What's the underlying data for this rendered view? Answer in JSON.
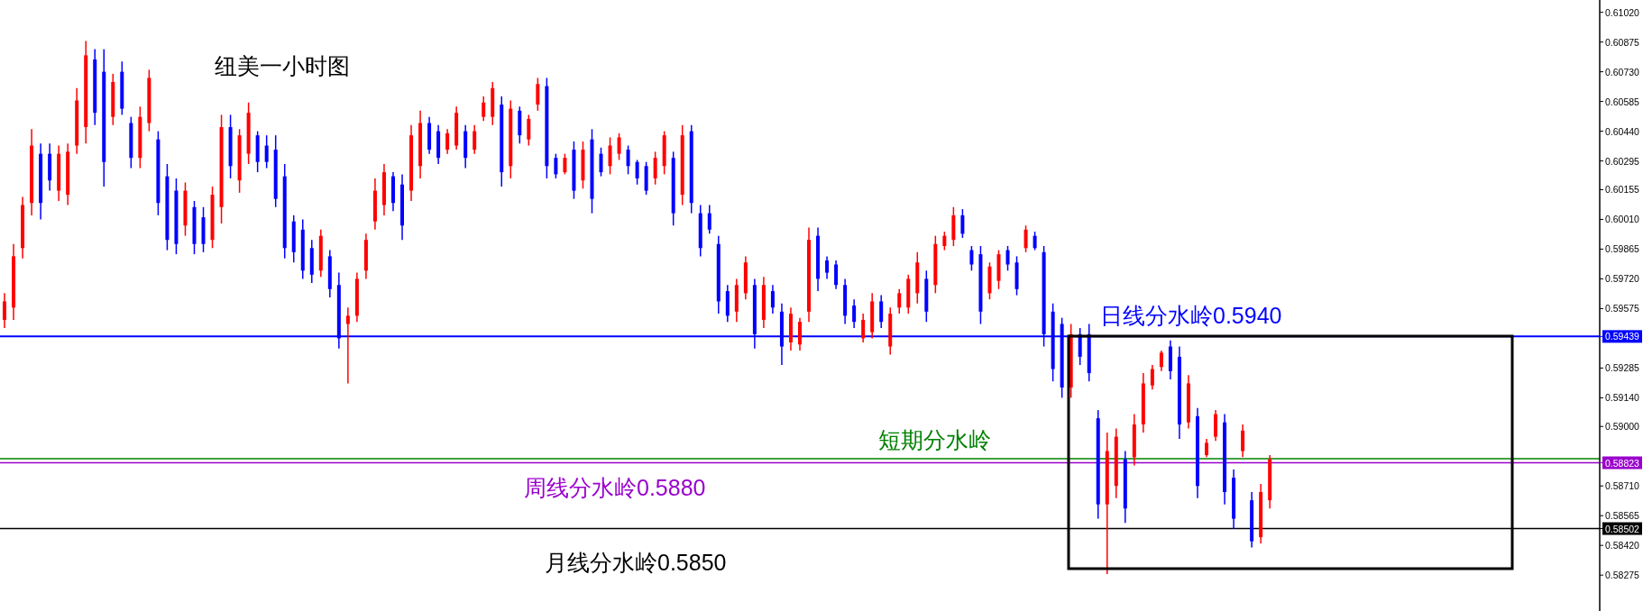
{
  "chart_data": {
    "type": "candlestick",
    "title": "纽美一小时图",
    "categories": [
      null,
      null,
      null,
      null,
      null,
      null,
      null,
      null,
      null,
      null,
      null,
      null,
      null,
      null,
      null,
      null,
      null,
      null,
      null,
      null,
      null,
      null,
      null,
      null,
      null,
      null,
      null,
      null,
      null,
      null,
      null,
      null,
      null,
      null,
      null,
      null,
      null,
      null,
      null,
      null,
      null,
      null,
      null,
      null,
      null,
      null,
      null,
      null,
      null,
      null,
      null,
      null,
      null,
      null,
      null,
      null,
      null,
      null,
      null,
      null,
      null,
      null,
      null,
      null,
      null,
      null,
      null,
      null,
      null,
      null,
      null,
      null,
      null,
      null,
      null,
      null,
      null,
      null,
      null,
      null,
      null,
      null,
      null,
      null,
      null,
      null,
      null,
      null,
      null,
      null,
      null,
      null,
      null,
      null,
      null,
      null,
      null,
      null,
      null,
      null,
      null,
      null,
      null,
      null,
      null,
      null,
      null,
      null,
      null,
      null,
      null,
      null,
      null,
      null,
      null,
      null,
      null,
      null,
      null,
      null,
      null,
      null,
      null,
      null,
      null,
      null,
      null,
      null,
      null,
      null,
      null,
      null,
      null,
      null,
      null,
      null,
      null,
      null,
      null,
      null,
      null,
      null,
      null,
      null,
      null,
      null,
      null,
      null,
      null,
      null,
      null,
      null,
      null,
      null,
      null,
      null,
      null,
      null,
      null,
      null,
      null,
      null,
      null,
      null,
      null,
      null,
      null,
      null,
      null,
      null,
      null,
      null,
      null,
      null,
      null,
      null,
      null
    ],
    "ohlc": [
      [
        0.5952,
        0.5965,
        0.5948,
        0.5961
      ],
      [
        0.5958,
        0.5989,
        0.5952,
        0.5983
      ],
      [
        0.5987,
        0.6012,
        0.5982,
        0.6008
      ],
      [
        0.6009,
        0.6045,
        0.6003,
        0.6037
      ],
      [
        0.6033,
        0.6038,
        0.6001,
        0.6009
      ],
      [
        0.6033,
        0.6038,
        0.6015,
        0.602
      ],
      [
        0.6015,
        0.6037,
        0.601,
        0.6033
      ],
      [
        0.6013,
        0.6038,
        0.6008,
        0.6034
      ],
      [
        0.6037,
        0.6065,
        0.6033,
        0.6059
      ],
      [
        0.6046,
        0.6088,
        0.6038,
        0.6081
      ],
      [
        0.6079,
        0.6084,
        0.6047,
        0.6053
      ],
      [
        0.6073,
        0.6084,
        0.6017,
        0.6029
      ],
      [
        0.6051,
        0.6072,
        0.6047,
        0.6068
      ],
      [
        0.6073,
        0.6078,
        0.6052,
        0.6055
      ],
      [
        0.6048,
        0.6051,
        0.6026,
        0.6031
      ],
      [
        0.6031,
        0.6056,
        0.6026,
        0.6051
      ],
      [
        0.6048,
        0.6074,
        0.6044,
        0.607
      ],
      [
        0.604,
        0.6044,
        0.6003,
        0.6009
      ],
      [
        0.6022,
        0.6028,
        0.5986,
        0.5991
      ],
      [
        0.6015,
        0.6021,
        0.5984,
        0.5989
      ],
      [
        0.5998,
        0.6019,
        0.5993,
        0.6015
      ],
      [
        0.6007,
        0.601,
        0.5984,
        0.5989
      ],
      [
        0.6002,
        0.6007,
        0.5985,
        0.5989
      ],
      [
        0.5991,
        0.6017,
        0.5987,
        0.6013
      ],
      [
        0.6007,
        0.6052,
        0.5999,
        0.6046
      ],
      [
        0.6046,
        0.6052,
        0.6021,
        0.6027
      ],
      [
        0.602,
        0.6045,
        0.6014,
        0.6042
      ],
      [
        0.6033,
        0.6058,
        0.6028,
        0.6053
      ],
      [
        0.6042,
        0.6044,
        0.6024,
        0.6029
      ],
      [
        0.6037,
        0.6042,
        0.6026,
        0.6029
      ],
      [
        0.6035,
        0.6042,
        0.6007,
        0.6011
      ],
      [
        0.6022,
        0.6028,
        0.5982,
        0.5987
      ],
      [
        0.6,
        0.6003,
        0.598,
        0.5985
      ],
      [
        0.5996,
        0.6001,
        0.5972,
        0.5976
      ],
      [
        0.5987,
        0.5991,
        0.597,
        0.5974
      ],
      [
        0.5976,
        0.5996,
        0.5973,
        0.5993
      ],
      [
        0.5983,
        0.5986,
        0.5963,
        0.5967
      ],
      [
        0.5969,
        0.5975,
        0.5938,
        0.5943
      ],
      [
        0.595,
        0.5958,
        0.5921,
        0.5954
      ],
      [
        0.5954,
        0.5975,
        0.5951,
        0.5972
      ],
      [
        0.5976,
        0.5994,
        0.5972,
        0.5991
      ],
      [
        0.6,
        0.6021,
        0.5996,
        0.6015
      ],
      [
        0.6008,
        0.6028,
        0.6003,
        0.6024
      ],
      [
        0.6022,
        0.6024,
        0.6005,
        0.6009
      ],
      [
        0.6018,
        0.6023,
        0.5991,
        0.5998
      ],
      [
        0.6015,
        0.6047,
        0.601,
        0.6042
      ],
      [
        0.6027,
        0.6054,
        0.6021,
        0.6048
      ],
      [
        0.6048,
        0.6051,
        0.6033,
        0.6035
      ],
      [
        0.6044,
        0.6047,
        0.6028,
        0.6031
      ],
      [
        0.6035,
        0.6045,
        0.6033,
        0.6043
      ],
      [
        0.6037,
        0.6056,
        0.6035,
        0.6053
      ],
      [
        0.6044,
        0.6047,
        0.6026,
        0.6031
      ],
      [
        0.6035,
        0.6047,
        0.6033,
        0.6044
      ],
      [
        0.6051,
        0.6061,
        0.6049,
        0.6058
      ],
      [
        0.6051,
        0.6068,
        0.6047,
        0.6065
      ],
      [
        0.6057,
        0.6061,
        0.6017,
        0.6024
      ],
      [
        0.6027,
        0.6059,
        0.6021,
        0.6055
      ],
      [
        0.6054,
        0.6056,
        0.6038,
        0.6042
      ],
      [
        0.604,
        0.6052,
        0.6037,
        0.605
      ],
      [
        0.6057,
        0.607,
        0.6054,
        0.6067
      ],
      [
        0.6066,
        0.607,
        0.6021,
        0.6027
      ],
      [
        0.6031,
        0.6033,
        0.6021,
        0.6023
      ],
      [
        0.6024,
        0.6033,
        0.6023,
        0.6031
      ],
      [
        0.6035,
        0.6039,
        0.6011,
        0.6015
      ],
      [
        0.602,
        0.6039,
        0.6016,
        0.6035
      ],
      [
        0.604,
        0.6045,
        0.6004,
        0.6011
      ],
      [
        0.6033,
        0.6036,
        0.6022,
        0.6024
      ],
      [
        0.6027,
        0.6041,
        0.6023,
        0.6037
      ],
      [
        0.6033,
        0.6043,
        0.603,
        0.6041
      ],
      [
        0.6035,
        0.6037,
        0.6023,
        0.6027
      ],
      [
        0.6029,
        0.603,
        0.6018,
        0.6021
      ],
      [
        0.6027,
        0.6029,
        0.6013,
        0.6015
      ],
      [
        0.6021,
        0.6034,
        0.6018,
        0.6031
      ],
      [
        0.6027,
        0.6044,
        0.6023,
        0.6042
      ],
      [
        0.6031,
        0.6034,
        0.5998,
        0.6004
      ],
      [
        0.6013,
        0.6047,
        0.6008,
        0.6042
      ],
      [
        0.6044,
        0.6047,
        0.6004,
        0.6009
      ],
      [
        0.6004,
        0.6008,
        0.5983,
        0.5987
      ],
      [
        0.6004,
        0.6008,
        0.5994,
        0.5996
      ],
      [
        0.5989,
        0.5993,
        0.5955,
        0.5961
      ],
      [
        0.5966,
        0.5969,
        0.5951,
        0.5954
      ],
      [
        0.5956,
        0.5972,
        0.5951,
        0.5969
      ],
      [
        0.5965,
        0.5983,
        0.5962,
        0.598
      ],
      [
        0.5969,
        0.5972,
        0.5938,
        0.5945
      ],
      [
        0.5952,
        0.5973,
        0.5948,
        0.5969
      ],
      [
        0.5966,
        0.5969,
        0.5955,
        0.5958
      ],
      [
        0.5956,
        0.596,
        0.593,
        0.5939
      ],
      [
        0.5941,
        0.5958,
        0.5937,
        0.5955
      ],
      [
        0.594,
        0.5953,
        0.5937,
        0.5951
      ],
      [
        0.5956,
        0.5997,
        0.5951,
        0.5991
      ],
      [
        0.5993,
        0.5997,
        0.5966,
        0.5972
      ],
      [
        0.5981,
        0.5983,
        0.5972,
        0.5975
      ],
      [
        0.5979,
        0.5981,
        0.5967,
        0.5969
      ],
      [
        0.5969,
        0.5972,
        0.595,
        0.5954
      ],
      [
        0.5959,
        0.5962,
        0.5948,
        0.5951
      ],
      [
        0.5943,
        0.5955,
        0.5941,
        0.5952
      ],
      [
        0.5946,
        0.5965,
        0.5943,
        0.5961
      ],
      [
        0.5961,
        0.5964,
        0.5948,
        0.5951
      ],
      [
        0.5939,
        0.5958,
        0.5935,
        0.5955
      ],
      [
        0.5958,
        0.5967,
        0.5955,
        0.5965
      ],
      [
        0.5958,
        0.5974,
        0.5955,
        0.5972
      ],
      [
        0.5965,
        0.5985,
        0.596,
        0.598
      ],
      [
        0.5972,
        0.5976,
        0.5951,
        0.5956
      ],
      [
        0.5969,
        0.5993,
        0.5965,
        0.5989
      ],
      [
        0.5988,
        0.5995,
        0.5986,
        0.5993
      ],
      [
        0.5991,
        0.6007,
        0.5988,
        0.6003
      ],
      [
        0.6003,
        0.6006,
        0.5992,
        0.5994
      ],
      [
        0.5986,
        0.5988,
        0.5976,
        0.5979
      ],
      [
        0.5984,
        0.5988,
        0.595,
        0.5956
      ],
      [
        0.5965,
        0.598,
        0.5962,
        0.5978
      ],
      [
        0.5971,
        0.5986,
        0.5967,
        0.5984
      ],
      [
        0.5986,
        0.5988,
        0.5976,
        0.5979
      ],
      [
        0.598,
        0.5983,
        0.5964,
        0.5967
      ],
      [
        0.5987,
        0.5998,
        0.5985,
        0.5996
      ],
      [
        0.5993,
        0.5995,
        0.5986,
        0.5987
      ],
      [
        0.5985,
        0.5988,
        0.5939,
        0.5945
      ],
      [
        0.5956,
        0.596,
        0.5922,
        0.5928
      ],
      [
        0.595,
        0.5953,
        0.5914,
        0.5919
      ],
      [
        0.5919,
        0.595,
        0.5914,
        0.5945
      ],
      [
        0.5945,
        0.5948,
        0.593,
        0.5934
      ],
      [
        0.5945,
        0.595,
        0.5922,
        0.5926
      ],
      [
        0.5904,
        0.5908,
        0.5855,
        0.5862
      ],
      [
        0.5862,
        0.5897,
        0.5828,
        0.5888
      ],
      [
        0.5871,
        0.5899,
        0.5865,
        0.5895
      ],
      [
        0.5884,
        0.5888,
        0.5853,
        0.586
      ],
      [
        0.5885,
        0.5906,
        0.5881,
        0.5901
      ],
      [
        0.5901,
        0.5926,
        0.5897,
        0.5921
      ],
      [
        0.592,
        0.593,
        0.5918,
        0.5928
      ],
      [
        0.5929,
        0.5937,
        0.5927,
        0.5936
      ],
      [
        0.5939,
        0.5942,
        0.5923,
        0.5927
      ],
      [
        0.5934,
        0.5939,
        0.5894,
        0.5901
      ],
      [
        0.5902,
        0.5925,
        0.5899,
        0.5921
      ],
      [
        0.5905,
        0.5909,
        0.5865,
        0.5871
      ],
      [
        0.5886,
        0.5894,
        0.5885,
        0.5892
      ],
      [
        0.5895,
        0.5908,
        0.5893,
        0.5906
      ],
      [
        0.5902,
        0.5906,
        0.5862,
        0.5868
      ],
      [
        0.5875,
        0.5879,
        0.585,
        0.5855
      ],
      [
        0.5888,
        0.5901,
        0.5885,
        0.5898
      ],
      [
        0.5864,
        0.5868,
        0.5841,
        0.5844
      ],
      [
        0.5846,
        0.5872,
        0.5843,
        0.5868
      ],
      [
        0.5864,
        0.5886,
        0.586,
        0.5884
      ],
      null,
      null,
      null,
      null,
      null,
      null,
      null,
      null,
      null,
      null,
      null,
      null,
      null,
      null,
      null,
      null,
      null,
      null,
      null,
      null,
      null,
      null,
      null,
      null,
      null,
      null,
      null,
      null,
      null,
      null,
      null,
      null,
      null,
      null,
      null,
      null
    ],
    "colors": [
      "#ff0000",
      "#ff0000",
      "#ff0000",
      "#ff0000",
      "#0000ff",
      "#0000ff",
      "#ff0000",
      "#ff0000",
      "#ff0000",
      "#ff0000",
      "#0000ff",
      "#0000ff",
      "#ff0000",
      "#0000ff",
      "#0000ff",
      "#ff0000",
      "#ff0000",
      "#0000ff",
      "#0000ff",
      "#0000ff",
      "#ff0000",
      "#0000ff",
      "#0000ff",
      "#ff0000",
      "#ff0000",
      "#0000ff",
      "#ff0000",
      "#ff0000",
      "#0000ff",
      "#0000ff",
      "#0000ff",
      "#0000ff",
      "#0000ff",
      "#0000ff",
      "#0000ff",
      "#ff0000",
      "#0000ff",
      "#0000ff",
      "#ff0000",
      "#ff0000",
      "#ff0000",
      "#ff0000",
      "#ff0000",
      "#0000ff",
      "#0000ff",
      "#ff0000",
      "#ff0000",
      "#0000ff",
      "#0000ff",
      "#ff0000",
      "#ff0000",
      "#0000ff",
      "#ff0000",
      "#ff0000",
      "#ff0000",
      "#0000ff",
      "#ff0000",
      "#0000ff",
      "#ff0000",
      "#ff0000",
      "#0000ff",
      "#0000ff",
      "#ff0000",
      "#0000ff",
      "#ff0000",
      "#0000ff",
      "#0000ff",
      "#ff0000",
      "#ff0000",
      "#0000ff",
      "#0000ff",
      "#0000ff",
      "#ff0000",
      "#ff0000",
      "#0000ff",
      "#ff0000",
      "#0000ff",
      "#0000ff",
      "#0000ff",
      "#0000ff",
      "#0000ff",
      "#ff0000",
      "#ff0000",
      "#0000ff",
      "#ff0000",
      "#0000ff",
      "#0000ff",
      "#ff0000",
      "#ff0000",
      "#ff0000",
      "#0000ff",
      "#0000ff",
      "#0000ff",
      "#0000ff",
      "#0000ff",
      "#ff0000",
      "#ff0000",
      "#0000ff",
      "#ff0000",
      "#ff0000",
      "#ff0000",
      "#ff0000",
      "#0000ff",
      "#ff0000",
      "#ff0000",
      "#ff0000",
      "#0000ff",
      "#0000ff",
      "#0000ff",
      "#ff0000",
      "#ff0000",
      "#0000ff",
      "#0000ff",
      "#ff0000",
      "#0000ff",
      "#0000ff",
      "#0000ff",
      "#0000ff",
      "#ff0000",
      "#0000ff",
      "#0000ff",
      "#0000ff",
      "#ff0000",
      "#ff0000",
      "#0000ff",
      "#ff0000",
      "#ff0000",
      "#ff0000",
      "#ff0000",
      "#0000ff",
      "#0000ff",
      "#ff0000",
      "#0000ff",
      "#ff0000",
      "#ff0000",
      "#0000ff",
      "#0000ff",
      "#ff0000",
      "#0000ff",
      "#ff0000",
      "#ff0000",
      null,
      null,
      null,
      null,
      null,
      null,
      null,
      null,
      null,
      null,
      null,
      null,
      null,
      null,
      null,
      null,
      null,
      null,
      null,
      null,
      null,
      null,
      null,
      null,
      null,
      null,
      null,
      null,
      null,
      null,
      null,
      null,
      null,
      null,
      null,
      null
    ],
    "ylim": [
      0.581,
      0.6108
    ],
    "yticks": [
      {
        "value": 0.6102,
        "label": "0.61020"
      },
      {
        "value": 0.60875,
        "label": "0.60875"
      },
      {
        "value": 0.6073,
        "label": "0.60730"
      },
      {
        "value": 0.60585,
        "label": "0.60585"
      },
      {
        "value": 0.6044,
        "label": "0.60440"
      },
      {
        "value": 0.60295,
        "label": "0.60295"
      },
      {
        "value": 0.60155,
        "label": "0.60155"
      },
      {
        "value": 0.6001,
        "label": "0.60010"
      },
      {
        "value": 0.59865,
        "label": "0.59865"
      },
      {
        "value": 0.5972,
        "label": "0.59720"
      },
      {
        "value": 0.59575,
        "label": "0.59575"
      },
      {
        "value": 0.59439,
        "label": "0.59439"
      },
      {
        "value": 0.59285,
        "label": "0.59285"
      },
      {
        "value": 0.5914,
        "label": "0.59140"
      },
      {
        "value": 0.59,
        "label": "0.59000"
      },
      {
        "value": 0.58823,
        "label": "0.58823"
      },
      {
        "value": 0.5871,
        "label": "0.58710"
      },
      {
        "value": 0.58565,
        "label": "0.58565"
      },
      {
        "value": 0.58502,
        "label": "0.58502"
      },
      {
        "value": 0.5842,
        "label": "0.58420"
      },
      {
        "value": 0.58275,
        "label": "0.58275"
      }
    ],
    "ref_lines": [
      {
        "axis": "y",
        "value": 0.59439,
        "label": "日线分水岭0.5940",
        "color": "#0000ff"
      },
      {
        "axis": "y",
        "value": 0.58843,
        "label": "短期分水岭",
        "color": "#008000"
      },
      {
        "axis": "y",
        "value": 0.58823,
        "label": "周线分水岭0.5880",
        "color": "#9900cc"
      },
      {
        "axis": "y",
        "value": 0.58502,
        "label": "月线分水岭0.5850",
        "color": "#000000"
      }
    ],
    "tick_labels": "y"
  }
}
